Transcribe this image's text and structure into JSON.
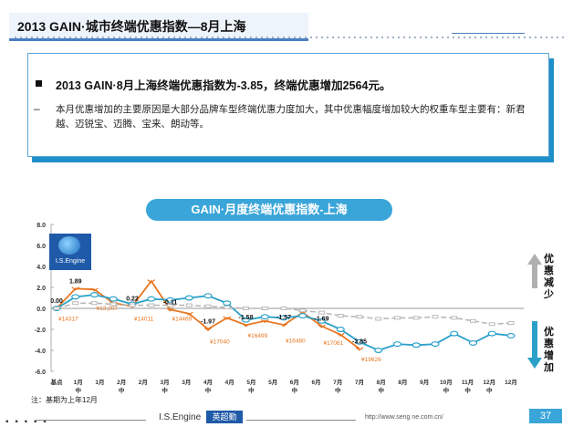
{
  "page": {
    "title": "2013 GAIN·城市终端优惠指数—8月上海",
    "summary_headline": "2013 GAIN·8月上海终端优惠指数为-3.85，终端优惠增加2564元。",
    "summary_dash": "–",
    "summary_body": "本月优惠增加的主要原因是大部分品牌车型终端优惠力度加大，其中优惠幅度增加较大的权重车型主要有：新君越、迈锐宝、迈腾、宝来、朗动等。",
    "logo_text": "I.S.Engine",
    "side_up_label": "优惠减少",
    "side_down_label": "优惠增加",
    "note": "注：基期为上年12月",
    "footer_dots": "▪ ▪ ▪ ▪ ▪",
    "footer_brand": "I.S.Engine",
    "footer_badge": "英超勤",
    "footer_url": "http://www.seng ne.com.cn/",
    "page_number": "37"
  },
  "colors": {
    "orange": "#e87722",
    "blue": "#2aa0c9",
    "gray": "#b8b8b8",
    "accent": "#3aa5d8",
    "axis_text": "#333333",
    "value_label": "#111111",
    "price_label": "#e87722",
    "arrow_up": "#b0b0b0",
    "arrow_down": "#2aa0c9"
  },
  "chart_data": {
    "type": "line",
    "title": "GAIN·月度终端优惠指数-上海",
    "categories": [
      "基点",
      "1月中",
      "1月",
      "2月中",
      "2月",
      "3月中",
      "3月",
      "4月中",
      "4月",
      "5月中",
      "5月",
      "6月中",
      "6月",
      "7月中",
      "7月",
      "8月中",
      "8月",
      "9月",
      "9月中",
      "10月",
      "10月中",
      "11月",
      "11月中",
      "12月",
      "12月中"
    ],
    "x_tick_labels": [
      "基点",
      "1月中",
      "1月",
      "2月中",
      "2月",
      "3月中",
      "3月",
      "4月中",
      "4月",
      "5月中",
      "5月",
      "6月中",
      "6月",
      "7月中",
      "7月",
      "8月中",
      "8月",
      "9月",
      "10月中",
      "11月中",
      "12月中",
      "12月"
    ],
    "ylim": [
      -6.0,
      8.0
    ],
    "yticks": [
      "8.0",
      "6.0",
      "4.0",
      "2.0",
      "0.0",
      "-2.0",
      "-4.0",
      "-6.0"
    ],
    "series": [
      {
        "color_key": "orange",
        "values": [
          0.0,
          1.89,
          1.8,
          0.5,
          0.22,
          2.6,
          -0.11,
          -0.5,
          -1.97,
          -0.9,
          -1.58,
          -1.2,
          -1.57,
          -0.4,
          -1.69,
          -2.5,
          -3.85,
          null,
          null,
          null,
          null,
          null,
          null,
          null,
          null
        ]
      },
      {
        "color_key": "blue",
        "values": [
          0.0,
          1.1,
          1.3,
          0.9,
          0.4,
          0.9,
          0.8,
          1.0,
          1.2,
          0.5,
          -1.1,
          -0.8,
          -0.9,
          -0.7,
          -1.2,
          -2.0,
          -3.2,
          -4.0,
          -3.4,
          -3.5,
          -3.4,
          -2.4,
          -3.3,
          -2.4,
          -2.6
        ]
      },
      {
        "color_key": "gray",
        "values": [
          0.0,
          0.5,
          0.5,
          0.4,
          0.3,
          0.3,
          0.3,
          0.3,
          0.2,
          0.1,
          0.0,
          0.0,
          0.0,
          -0.2,
          -0.4,
          -0.7,
          -0.8,
          -1.0,
          -0.9,
          -0.9,
          -0.8,
          -0.9,
          -1.2,
          -1.5,
          -1.4
        ]
      }
    ],
    "value_labels": [
      {
        "i": 0,
        "y": 0.0,
        "text": "0.00"
      },
      {
        "i": 1,
        "y": 1.89,
        "text": "1.89"
      },
      {
        "i": 4,
        "y": 0.22,
        "text": "0.22"
      },
      {
        "i": 6,
        "y": -0.11,
        "text": "-0.11"
      },
      {
        "i": 8,
        "y": -1.97,
        "text": "-1.97"
      },
      {
        "i": 10,
        "y": -1.58,
        "text": "-1.58"
      },
      {
        "i": 12,
        "y": -1.57,
        "text": "-1.57"
      },
      {
        "i": 14,
        "y": -1.69,
        "text": "-1.69"
      },
      {
        "i": 16,
        "y": -3.85,
        "text": "-3.85"
      }
    ],
    "price_labels": [
      {
        "i": 0,
        "y": -0.9,
        "text": "¥14317"
      },
      {
        "i": 2,
        "y": 0.1,
        "text": "¥13,207"
      },
      {
        "i": 4,
        "y": -0.9,
        "text": "¥14011"
      },
      {
        "i": 6,
        "y": -0.9,
        "text": "¥14469"
      },
      {
        "i": 8,
        "y": -3.1,
        "text": "¥17040"
      },
      {
        "i": 10,
        "y": -2.5,
        "text": "¥16499"
      },
      {
        "i": 12,
        "y": -3.0,
        "text": "¥16480"
      },
      {
        "i": 14,
        "y": -3.2,
        "text": "¥17061"
      },
      {
        "i": 16,
        "y": -4.8,
        "text": "¥19626"
      }
    ]
  }
}
